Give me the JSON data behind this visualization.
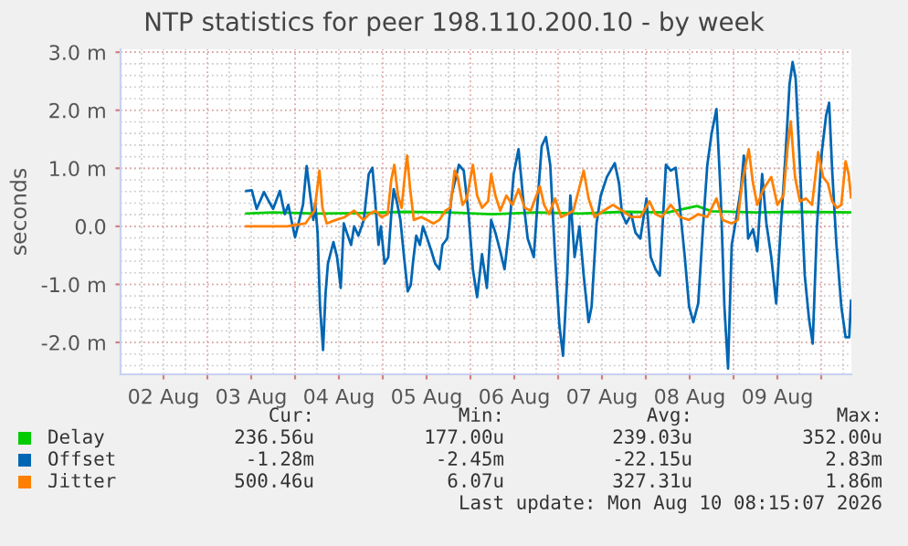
{
  "chart_data": {
    "type": "line",
    "title": "NTP statistics for peer 198.110.200.10 - by week",
    "ylabel": "seconds",
    "xlim": [
      "2026-08-02T00:15",
      "2026-08-10T08:15"
    ],
    "xticks": [
      {
        "value": "2026-08-02T12:00",
        "label": "02 Aug"
      },
      {
        "value": "2026-08-03T00:00",
        "label": null
      },
      {
        "value": "2026-08-03T12:00",
        "label": "03 Aug"
      },
      {
        "value": "2026-08-04T00:00",
        "label": null
      },
      {
        "value": "2026-08-04T12:00",
        "label": "04 Aug"
      },
      {
        "value": "2026-08-05T00:00",
        "label": null
      },
      {
        "value": "2026-08-05T12:00",
        "label": "05 Aug"
      },
      {
        "value": "2026-08-06T00:00",
        "label": null
      },
      {
        "value": "2026-08-06T12:00",
        "label": "06 Aug"
      },
      {
        "value": "2026-08-07T00:00",
        "label": null
      },
      {
        "value": "2026-08-07T12:00",
        "label": "07 Aug"
      },
      {
        "value": "2026-08-08T00:00",
        "label": null
      },
      {
        "value": "2026-08-08T12:00",
        "label": "08 Aug"
      },
      {
        "value": "2026-08-09T00:00",
        "label": null
      },
      {
        "value": "2026-08-09T12:00",
        "label": "09 Aug"
      },
      {
        "value": "2026-08-10T00:00",
        "label": null
      }
    ],
    "ylim": [
      -2.55,
      3.05
    ],
    "yticks": [
      {
        "value": -2,
        "label": "-2.0 m"
      },
      {
        "value": -1,
        "label": "-1.0 m"
      },
      {
        "value": 0,
        "label": "0.0"
      },
      {
        "value": 1,
        "label": "1.0 m"
      },
      {
        "value": 2,
        "label": "2.0 m"
      },
      {
        "value": 3,
        "label": "3.0 m"
      }
    ],
    "grid": true,
    "legend": "bottom",
    "series": [
      {
        "name": "Delay",
        "color": "#00cc00",
        "x": [
          "2026-08-03T10:40",
          "2026-08-03T18:00",
          "2026-08-04T06:00",
          "2026-08-04T18:00",
          "2026-08-05T06:00",
          "2026-08-05T18:00",
          "2026-08-06T06:00",
          "2026-08-06T18:00",
          "2026-08-07T06:00",
          "2026-08-07T18:00",
          "2026-08-08T06:00",
          "2026-08-08T14:00",
          "2026-08-08T18:00",
          "2026-08-09T06:00",
          "2026-08-09T18:00",
          "2026-08-10T08:10"
        ],
        "values": [
          0.22,
          0.24,
          0.22,
          0.23,
          0.25,
          0.24,
          0.21,
          0.24,
          0.22,
          0.25,
          0.24,
          0.35,
          0.26,
          0.24,
          0.25,
          0.24
        ]
      },
      {
        "name": "Offset",
        "color": "#0066b3",
        "x": [
          "2026-08-03T10:40",
          "2026-08-03T12:10",
          "2026-08-03T13:30",
          "2026-08-03T15:30",
          "2026-08-03T16:50",
          "2026-08-03T18:00",
          "2026-08-03T19:50",
          "2026-08-03T21:10",
          "2026-08-03T22:10",
          "2026-08-03T23:00",
          "2026-08-04T00:00",
          "2026-08-04T01:10",
          "2026-08-04T02:10",
          "2026-08-04T03:10",
          "2026-08-04T04:10",
          "2026-08-04T05:00",
          "2026-08-04T05:30",
          "2026-08-04T06:10",
          "2026-08-04T06:50",
          "2026-08-04T07:40",
          "2026-08-04T08:20",
          "2026-08-04T09:00",
          "2026-08-04T10:30",
          "2026-08-04T11:30",
          "2026-08-04T12:30",
          "2026-08-04T13:20",
          "2026-08-04T14:10",
          "2026-08-04T15:20",
          "2026-08-04T16:10",
          "2026-08-04T17:20",
          "2026-08-04T18:50",
          "2026-08-04T20:10",
          "2026-08-04T21:10",
          "2026-08-04T21:50",
          "2026-08-04T22:50",
          "2026-08-04T23:30",
          "2026-08-05T00:30",
          "2026-08-05T01:30",
          "2026-08-05T02:20",
          "2026-08-05T03:00",
          "2026-08-05T03:50",
          "2026-08-05T04:50",
          "2026-08-05T05:50",
          "2026-08-05T06:50",
          "2026-08-05T07:40",
          "2026-08-05T08:20",
          "2026-08-05T09:10",
          "2026-08-05T10:10",
          "2026-08-05T11:00",
          "2026-08-05T12:10",
          "2026-08-05T13:20",
          "2026-08-05T14:20",
          "2026-08-05T15:30",
          "2026-08-05T16:20",
          "2026-08-05T17:40",
          "2026-08-05T18:50",
          "2026-08-05T20:50",
          "2026-08-05T22:10",
          "2026-08-05T23:30",
          "2026-08-06T00:40",
          "2026-08-06T01:50",
          "2026-08-06T03:10",
          "2026-08-06T04:30",
          "2026-08-06T05:40",
          "2026-08-06T06:50",
          "2026-08-06T08:10",
          "2026-08-06T09:20",
          "2026-08-06T10:40",
          "2026-08-06T11:50",
          "2026-08-06T13:10",
          "2026-08-06T14:20",
          "2026-08-06T15:40",
          "2026-08-06T17:20",
          "2026-08-06T18:30",
          "2026-08-06T19:30",
          "2026-08-06T20:40",
          "2026-08-06T21:50",
          "2026-08-06T23:10",
          "2026-08-07T00:20",
          "2026-08-07T01:20",
          "2026-08-07T02:30",
          "2026-08-07T03:20",
          "2026-08-07T04:30",
          "2026-08-07T05:50",
          "2026-08-07T07:00",
          "2026-08-07T08:20",
          "2026-08-07T09:10",
          "2026-08-07T10:30",
          "2026-08-07T11:40",
          "2026-08-07T13:20",
          "2026-08-07T15:30",
          "2026-08-07T16:40",
          "2026-08-07T17:30",
          "2026-08-07T18:40",
          "2026-08-07T20:00",
          "2026-08-07T21:10",
          "2026-08-07T22:30",
          "2026-08-08T00:10",
          "2026-08-08T01:20",
          "2026-08-08T02:40",
          "2026-08-08T03:50",
          "2026-08-08T05:30",
          "2026-08-08T06:50",
          "2026-08-08T08:10",
          "2026-08-08T09:20",
          "2026-08-08T10:40",
          "2026-08-08T11:50",
          "2026-08-08T13:00",
          "2026-08-08T14:20",
          "2026-08-08T15:40",
          "2026-08-08T16:50",
          "2026-08-08T18:00",
          "2026-08-08T19:20",
          "2026-08-08T20:30",
          "2026-08-08T21:30",
          "2026-08-08T22:30",
          "2026-08-08T23:30",
          "2026-08-09T00:40",
          "2026-08-09T02:00",
          "2026-08-09T02:50",
          "2026-08-09T04:00",
          "2026-08-09T05:20",
          "2026-08-09T06:30",
          "2026-08-09T07:50",
          "2026-08-09T09:00",
          "2026-08-09T10:20",
          "2026-08-09T11:40",
          "2026-08-09T12:50",
          "2026-08-09T14:10",
          "2026-08-09T15:20",
          "2026-08-09T16:10",
          "2026-08-09T17:00",
          "2026-08-09T18:10",
          "2026-08-09T19:30",
          "2026-08-09T20:40",
          "2026-08-09T21:40",
          "2026-08-09T22:50",
          "2026-08-10T00:10",
          "2026-08-10T01:20",
          "2026-08-10T02:10",
          "2026-08-10T03:00",
          "2026-08-10T04:10",
          "2026-08-10T05:30",
          "2026-08-10T06:40",
          "2026-08-10T07:40",
          "2026-08-10T08:10"
        ],
        "values": [
          0.61,
          0.62,
          0.3,
          0.59,
          0.43,
          0.3,
          0.61,
          0.21,
          0.37,
          0.11,
          -0.19,
          0.11,
          0.37,
          1.04,
          0.53,
          0.11,
          0.4,
          -0.11,
          -1.38,
          -2.13,
          -1.17,
          -0.64,
          -0.27,
          -0.53,
          -1.06,
          0.05,
          -0.11,
          -0.32,
          0.0,
          -0.16,
          0.11,
          0.9,
          1.01,
          0.53,
          -0.32,
          0.0,
          -0.64,
          -0.53,
          0.21,
          0.64,
          0.43,
          0.11,
          -0.53,
          -1.12,
          -1.01,
          -0.59,
          -0.16,
          -0.32,
          0.0,
          -0.21,
          -0.43,
          -0.64,
          -0.74,
          -0.32,
          -0.21,
          0.53,
          1.06,
          0.96,
          0.21,
          -0.74,
          -1.22,
          -0.48,
          -1.06,
          0.11,
          -0.11,
          -0.43,
          -0.74,
          0.0,
          0.9,
          1.33,
          0.53,
          -0.21,
          -0.53,
          0.53,
          1.38,
          1.54,
          1.06,
          -0.53,
          -1.7,
          -2.23,
          -0.85,
          0.53,
          -0.53,
          0.0,
          -0.85,
          -1.65,
          -1.38,
          0.05,
          0.53,
          0.85,
          1.09,
          0.74,
          0.21,
          0.05,
          0.21,
          -0.11,
          -0.21,
          0.48,
          -0.53,
          -0.74,
          -0.85,
          1.06,
          0.96,
          1.01,
          0.32,
          -0.53,
          -1.38,
          -1.65,
          -1.33,
          0.0,
          1.06,
          1.6,
          2.02,
          0.53,
          -1.38,
          -2.45,
          -0.32,
          0.11,
          0.64,
          1.22,
          -0.21,
          -0.05,
          -0.43,
          0.9,
          0.05,
          -0.53,
          -1.33,
          -0.11,
          1.17,
          2.45,
          2.83,
          2.55,
          1.06,
          -0.85,
          -1.6,
          -2.02,
          0.0,
          1.28,
          1.91,
          2.13,
          0.96,
          -0.32,
          -1.38,
          -1.91,
          -1.91,
          -1.28
        ]
      },
      {
        "name": "Jitter",
        "color": "#ff8000",
        "x": [
          "2026-08-03T10:40",
          "2026-08-03T21:50",
          "2026-08-04T02:50",
          "2026-08-04T05:20",
          "2026-08-04T06:40",
          "2026-08-04T07:30",
          "2026-08-04T08:40",
          "2026-08-04T11:10",
          "2026-08-04T13:40",
          "2026-08-04T16:10",
          "2026-08-04T18:40",
          "2026-08-04T20:20",
          "2026-08-04T22:00",
          "2026-08-04T23:40",
          "2026-08-05T01:20",
          "2026-08-05T02:20",
          "2026-08-05T03:10",
          "2026-08-05T04:10",
          "2026-08-05T05:10",
          "2026-08-05T06:00",
          "2026-08-05T06:40",
          "2026-08-05T07:30",
          "2026-08-05T08:30",
          "2026-08-05T10:30",
          "2026-08-05T12:10",
          "2026-08-05T13:50",
          "2026-08-05T15:30",
          "2026-08-05T17:10",
          "2026-08-05T18:30",
          "2026-08-05T19:40",
          "2026-08-05T20:30",
          "2026-08-05T21:50",
          "2026-08-05T23:00",
          "2026-08-06T00:40",
          "2026-08-06T01:50",
          "2026-08-06T03:10",
          "2026-08-06T04:50",
          "2026-08-06T05:40",
          "2026-08-06T06:50",
          "2026-08-06T08:10",
          "2026-08-06T09:50",
          "2026-08-06T11:30",
          "2026-08-06T13:10",
          "2026-08-06T14:50",
          "2026-08-06T16:30",
          "2026-08-06T19:00",
          "2026-08-06T20:10",
          "2026-08-06T21:30",
          "2026-08-06T23:10",
          "2026-08-07T00:50",
          "2026-08-07T02:30",
          "2026-08-07T04:10",
          "2026-08-07T07:00",
          "2026-08-07T08:20",
          "2026-08-07T10:00",
          "2026-08-07T12:30",
          "2026-08-07T15:00",
          "2026-08-07T17:30",
          "2026-08-07T20:00",
          "2026-08-07T22:30",
          "2026-08-08T01:00",
          "2026-08-08T02:40",
          "2026-08-08T04:20",
          "2026-08-08T06:50",
          "2026-08-08T09:20",
          "2026-08-08T11:50",
          "2026-08-08T14:20",
          "2026-08-08T16:50",
          "2026-08-08T19:20",
          "2026-08-08T21:00",
          "2026-08-08T23:30",
          "2026-08-09T01:10",
          "2026-08-09T02:20",
          "2026-08-09T04:10",
          "2026-08-09T05:20",
          "2026-08-09T06:30",
          "2026-08-09T08:10",
          "2026-08-09T10:20",
          "2026-08-09T12:00",
          "2026-08-09T13:40",
          "2026-08-09T14:50",
          "2026-08-09T15:40",
          "2026-08-09T16:50",
          "2026-08-09T18:10",
          "2026-08-09T19:50",
          "2026-08-09T21:30",
          "2026-08-09T23:10",
          "2026-08-10T00:30",
          "2026-08-10T01:50",
          "2026-08-10T03:00",
          "2026-08-10T04:20",
          "2026-08-10T05:30",
          "2026-08-10T06:40",
          "2026-08-10T07:30",
          "2026-08-10T08:10"
        ],
        "values": [
          0.0,
          0.0,
          0.05,
          0.27,
          0.96,
          0.32,
          0.05,
          0.11,
          0.16,
          0.27,
          0.11,
          0.21,
          0.27,
          0.16,
          0.21,
          0.8,
          1.06,
          0.53,
          0.32,
          0.85,
          1.22,
          0.64,
          0.11,
          0.16,
          0.11,
          0.05,
          0.11,
          0.27,
          0.32,
          0.96,
          0.85,
          0.37,
          0.48,
          1.06,
          0.53,
          0.32,
          0.43,
          0.9,
          0.53,
          0.27,
          0.53,
          0.37,
          0.64,
          0.32,
          0.27,
          0.69,
          0.37,
          0.21,
          0.48,
          0.16,
          0.21,
          0.27,
          0.96,
          0.48,
          0.16,
          0.27,
          0.37,
          0.27,
          0.16,
          0.16,
          0.43,
          0.21,
          0.16,
          0.37,
          0.16,
          0.11,
          0.21,
          0.16,
          0.48,
          0.11,
          0.05,
          0.11,
          0.74,
          1.33,
          0.74,
          0.37,
          0.64,
          0.85,
          0.37,
          0.53,
          1.38,
          1.81,
          0.85,
          0.43,
          0.48,
          0.37,
          1.28,
          0.85,
          0.74,
          0.43,
          0.32,
          0.37,
          1.12,
          0.9,
          0.5
        ]
      }
    ],
    "annotations": [
      "Cur:",
      "Min:",
      "Avg:",
      "Max:",
      "236.56u",
      "177.00u",
      "239.03u",
      "352.00u",
      "-1.28m",
      "-2.45m",
      "-22.15u",
      "2.83m",
      "500.46u",
      "6.07u",
      "327.31u",
      "1.86m",
      "Last update: Mon Aug 10 08:15:07 2026"
    ]
  }
}
